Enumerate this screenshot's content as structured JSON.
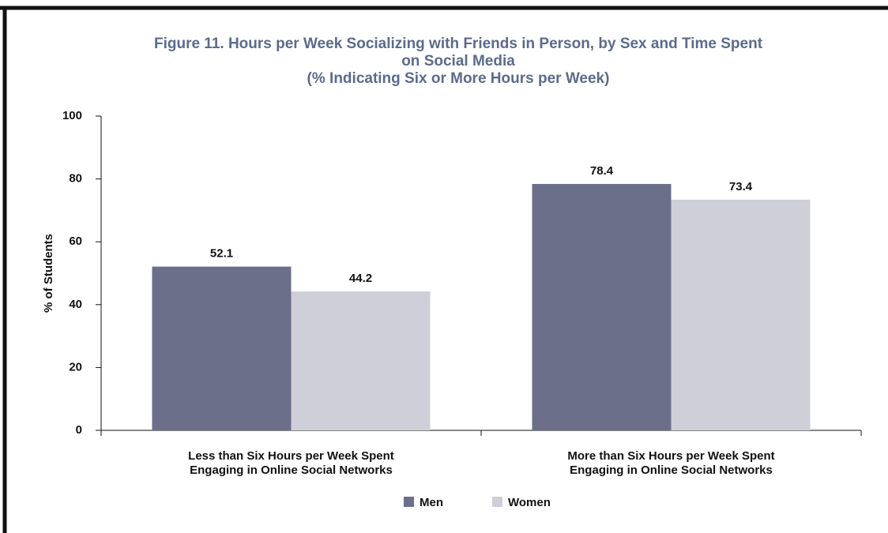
{
  "chart_data": {
    "type": "bar",
    "title": [
      "Figure 11. Hours per Week Socializing with Friends in Person, by Sex and Time Spent",
      "on Social Media"
    ],
    "subtitle": "(% Indicating Six or More Hours per Week)",
    "y_label": "% of Students",
    "categories": [
      "Less than Six Hours per Week Spent Engaging in Online Social Networks",
      "More than Six Hours per Week Spent Engaging in Online Social Networks"
    ],
    "series": [
      {
        "name": "Men",
        "color": "#6b6f8a",
        "values": [
          52.1,
          78.4
        ]
      },
      {
        "name": "Women",
        "color": "#cfcfd9",
        "values": [
          44.2,
          73.4
        ]
      }
    ],
    "ylim": [
      0,
      100
    ],
    "yticks": [
      0,
      20,
      40,
      60,
      80,
      100
    ],
    "grid": false,
    "legend": "bottom"
  }
}
